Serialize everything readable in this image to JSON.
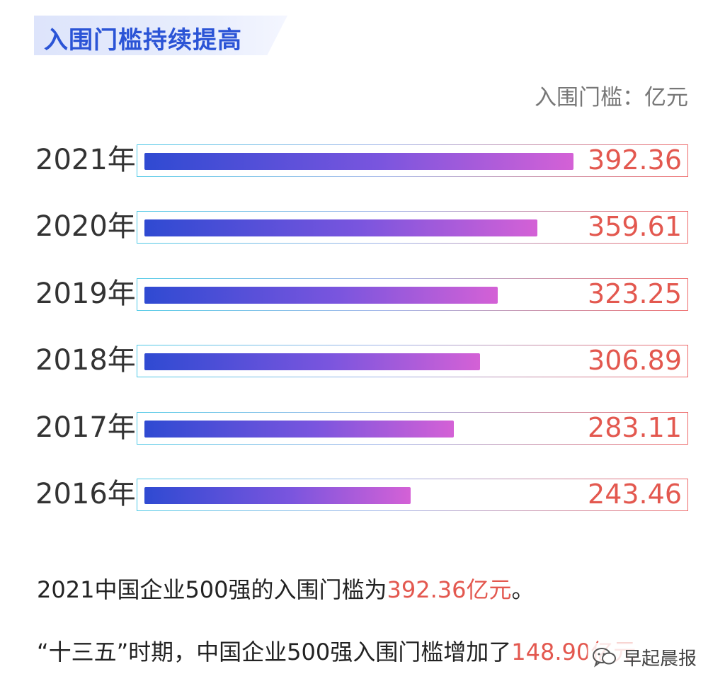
{
  "header": {
    "title": "入围门槛持续提高",
    "unit_label": "入围门槛：亿元"
  },
  "chart_data": {
    "type": "bar",
    "orientation": "horizontal",
    "title": "入围门槛持续提高",
    "categories": [
      "2021年",
      "2020年",
      "2019年",
      "2018年",
      "2017年",
      "2016年"
    ],
    "values": [
      392.36,
      359.61,
      323.25,
      306.89,
      283.11,
      243.46
    ],
    "value_labels": [
      "392.36",
      "359.61",
      "323.25",
      "306.89",
      "283.11",
      "243.46"
    ],
    "xlim": [
      0,
      500
    ],
    "grid": false,
    "legend": "none",
    "colors": {
      "bar_start": "#2f4ad2",
      "bar_end": "#d461d6",
      "value_text": "#e3584f",
      "title": "#2b54d6"
    }
  },
  "notes": {
    "line1_prefix": "2021中国企业500强的入围门槛为",
    "line1_value": "392.36亿元",
    "line1_suffix": "。",
    "line2_prefix": "“十三五”时期，中国企业500强入围门槛增加了",
    "line2_value": "148.90亿元"
  },
  "watermark": {
    "icon": "wechat-chat-icon",
    "text": "早起晨报"
  }
}
